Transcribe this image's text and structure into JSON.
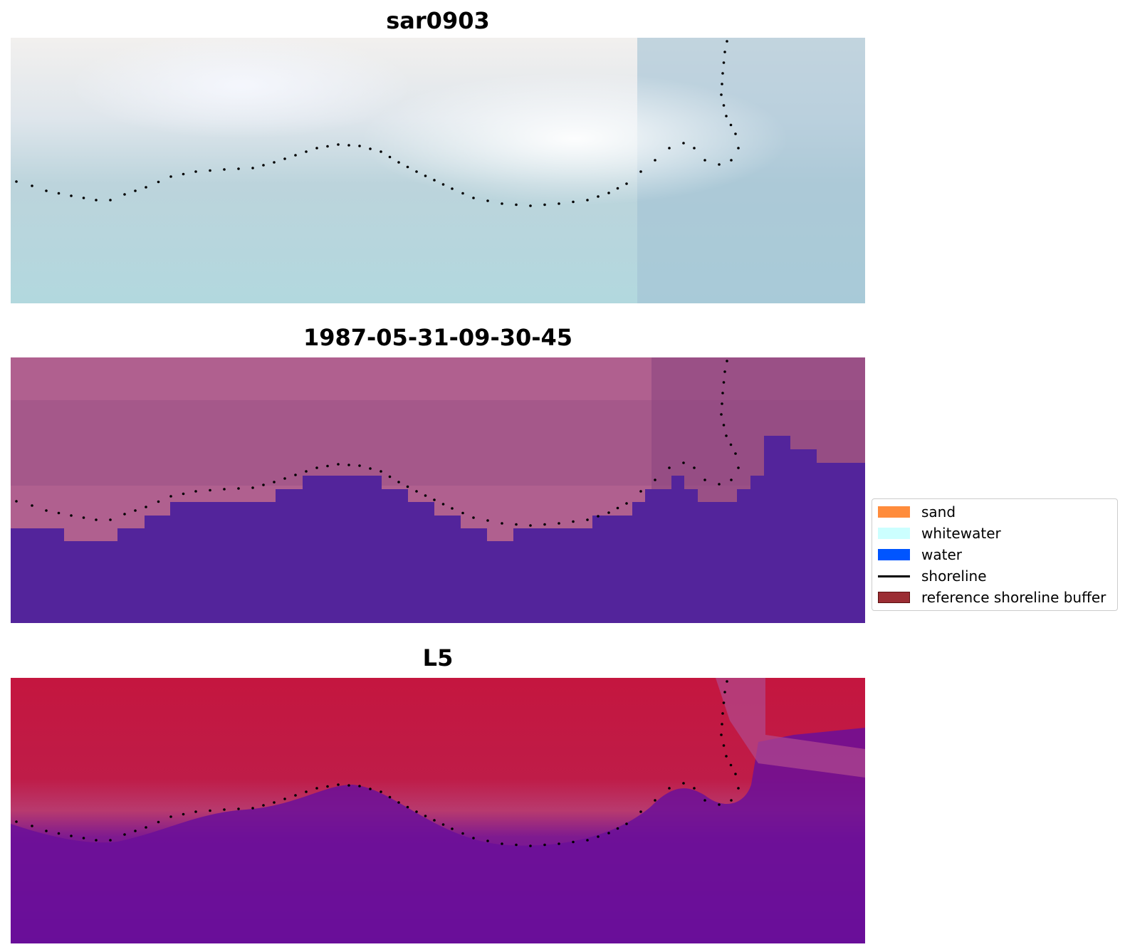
{
  "panels": [
    {
      "id": "sar",
      "title": "sar0903"
    },
    {
      "id": "date",
      "title": "1987-05-31-09-30-45"
    },
    {
      "id": "sensor",
      "title": "L5"
    }
  ],
  "legend": {
    "items": [
      {
        "label": "sand",
        "kind": "patch",
        "color": "#ff8c3c"
      },
      {
        "label": "whitewater",
        "kind": "patch",
        "color": "#ccffff"
      },
      {
        "label": "water",
        "kind": "patch",
        "color": "#0055ff"
      },
      {
        "label": "shoreline",
        "kind": "line",
        "color": "#000000"
      },
      {
        "label": "reference shoreline buffer",
        "kind": "patch",
        "color": "#9b2d33"
      }
    ]
  },
  "colors": {
    "sar_land": "#e6ebf0",
    "sar_water": "#b0d6dc",
    "date_land": "#b0608f",
    "date_water": "#53249b",
    "sensor_land": "#c21a48",
    "sensor_water": "#620a9a",
    "shoreline_dots": "#000000"
  }
}
